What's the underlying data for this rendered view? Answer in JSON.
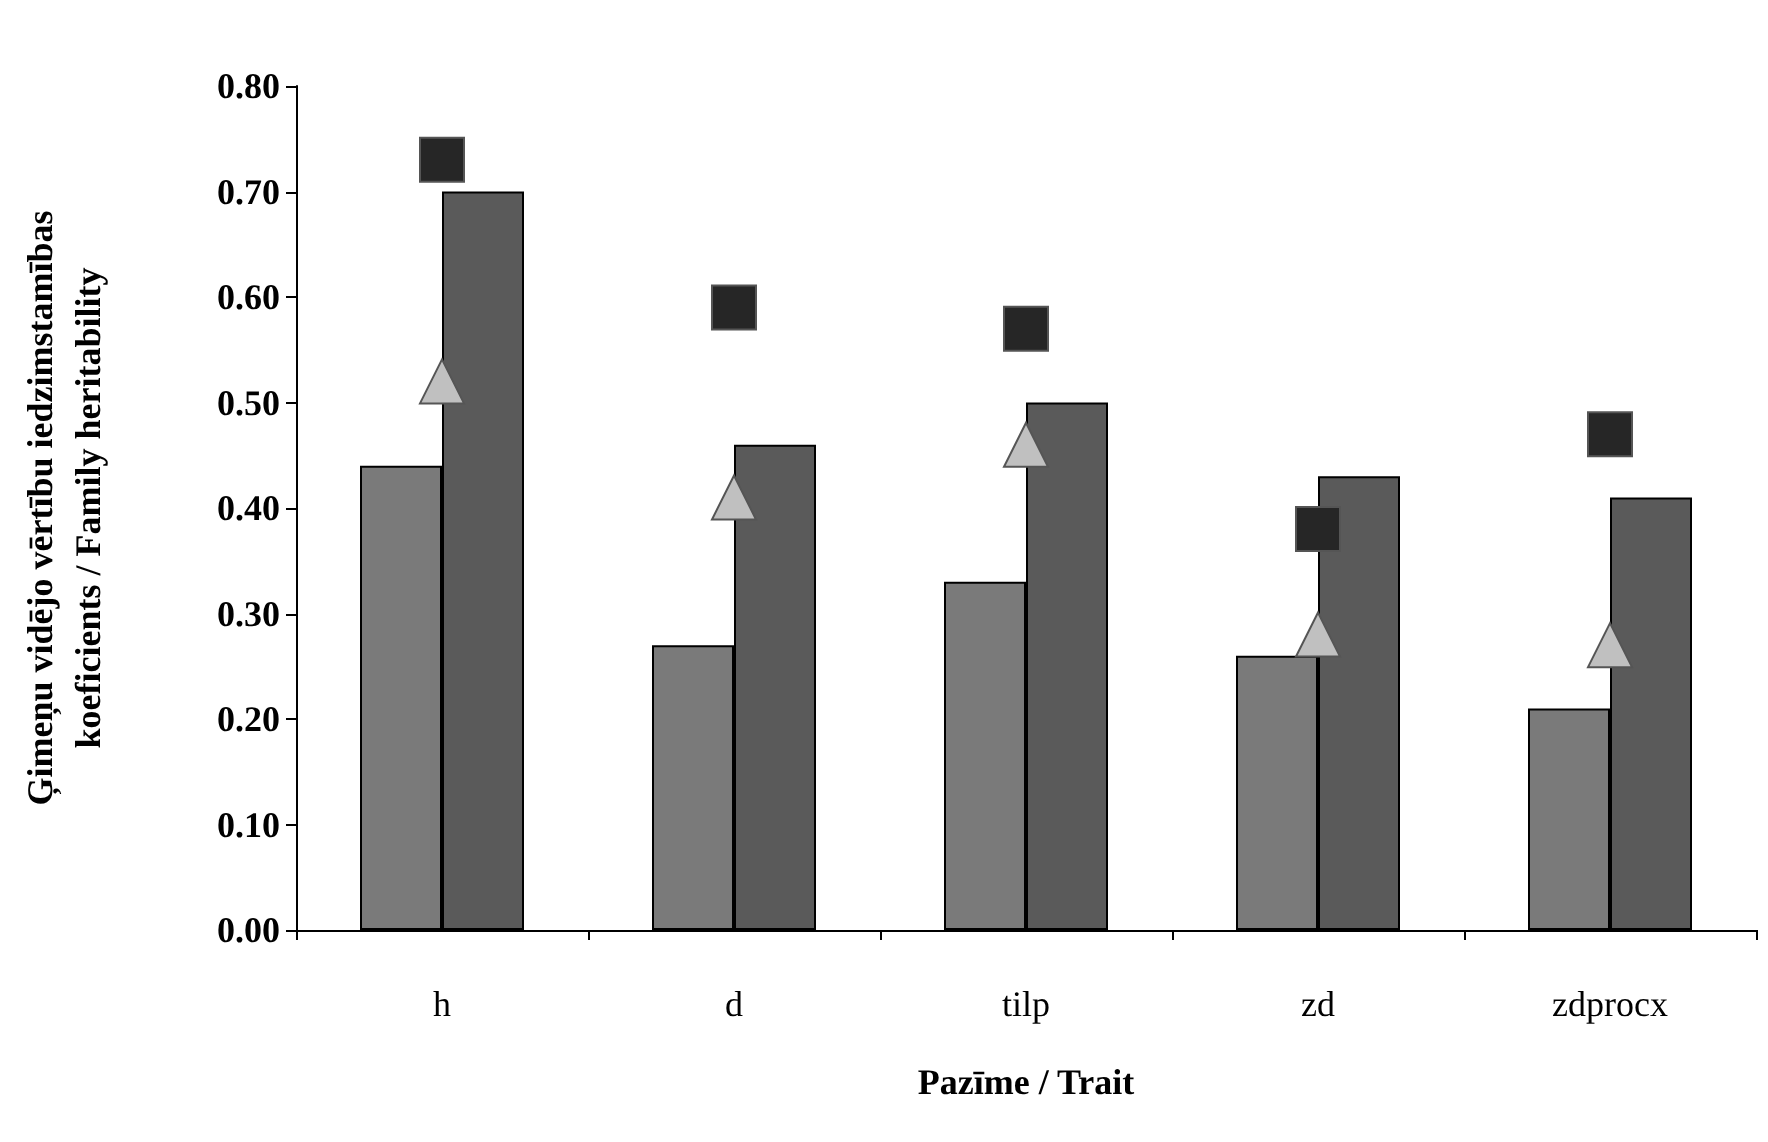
{
  "chart_data": {
    "type": "bar",
    "xlabel": "Pazīme / Trait",
    "ylabel": "Ģimeņu vidējo vērtību iedzimstamības\nkoeficients / Family heritability",
    "categories": [
      "h",
      "d",
      "tilp",
      "zd",
      "zdprocx"
    ],
    "series": [
      {
        "color": "#7a7a7a",
        "values": [
          0.44,
          0.27,
          0.33,
          0.26,
          0.21
        ]
      },
      {
        "color": "#5a5a5a",
        "values": [
          0.7,
          0.46,
          0.5,
          0.43,
          0.41
        ]
      },
      {
        "type": "scatter",
        "marker": "square",
        "color": "#262626",
        "x": [
          "h",
          "d",
          "tilp",
          "zd",
          "zdprocx"
        ],
        "values": [
          0.73,
          0.59,
          0.57,
          0.38,
          0.47
        ]
      },
      {
        "type": "scatter",
        "marker": "triangle",
        "color": "#c0c0c0",
        "x": [
          "h",
          "d",
          "tilp",
          "zd",
          "zdprocx"
        ],
        "values": [
          0.52,
          0.41,
          0.46,
          0.28,
          0.27
        ]
      }
    ],
    "ylim": [
      0,
      0.8
    ],
    "yticks": [
      {
        "value": 0,
        "label": "0.00"
      },
      {
        "value": 0.1,
        "label": "0.10"
      },
      {
        "value": 0.2,
        "label": "0.20"
      },
      {
        "value": 0.3,
        "label": "0.30"
      },
      {
        "value": 0.4,
        "label": "0.40"
      },
      {
        "value": 0.5,
        "label": "0.50"
      },
      {
        "value": 0.6,
        "label": "0.60"
      },
      {
        "value": 0.7,
        "label": "0.70"
      },
      {
        "value": 0.8,
        "label": "0.80"
      }
    ],
    "grid": false
  }
}
